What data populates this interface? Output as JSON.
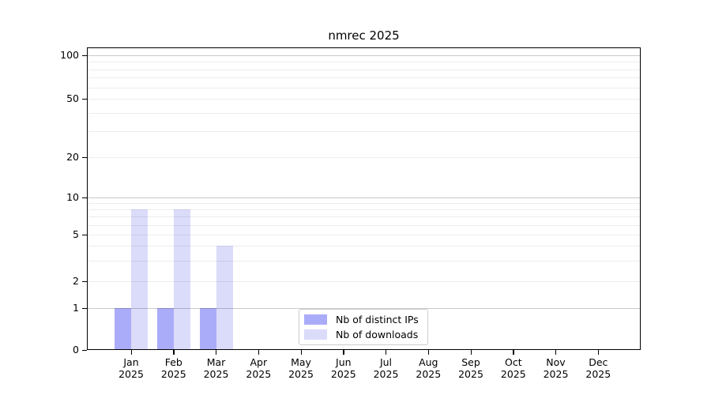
{
  "figure": {
    "background": "#ffffff"
  },
  "chart_data": {
    "type": "bar",
    "title": "nmrec 2025",
    "year": "2025",
    "categories": [
      "Jan",
      "Feb",
      "Mar",
      "Apr",
      "May",
      "Jun",
      "Jul",
      "Aug",
      "Sep",
      "Oct",
      "Nov",
      "Dec"
    ],
    "series": [
      {
        "name": "Nb of distinct IPs",
        "color": "#abacf9",
        "values": [
          1,
          1,
          1,
          0,
          0,
          0,
          0,
          0,
          0,
          0,
          0,
          0
        ]
      },
      {
        "name": "Nb of downloads",
        "color": "#dbdbfa",
        "values": [
          8,
          8,
          4,
          0,
          0,
          0,
          0,
          0,
          0,
          0,
          0,
          0
        ]
      }
    ],
    "y_axis": {
      "scale": "symlog",
      "ticks": [
        0,
        1,
        2,
        5,
        10,
        20,
        50,
        100
      ]
    },
    "x_axis": {
      "tick_label_lines": 2
    },
    "gridlines": {
      "major": [
        1,
        10,
        100
      ],
      "minor": [
        2,
        3,
        4,
        5,
        6,
        7,
        8,
        9,
        20,
        30,
        40,
        50,
        60,
        70,
        80,
        90
      ],
      "major_color": "#c9c9c9",
      "minor_color": "#ededed"
    },
    "legend": {
      "position": "lower center",
      "entries": [
        "Nb of distinct IPs",
        "Nb of downloads"
      ]
    },
    "axis_color": "#000000",
    "text_color": "#000000"
  }
}
